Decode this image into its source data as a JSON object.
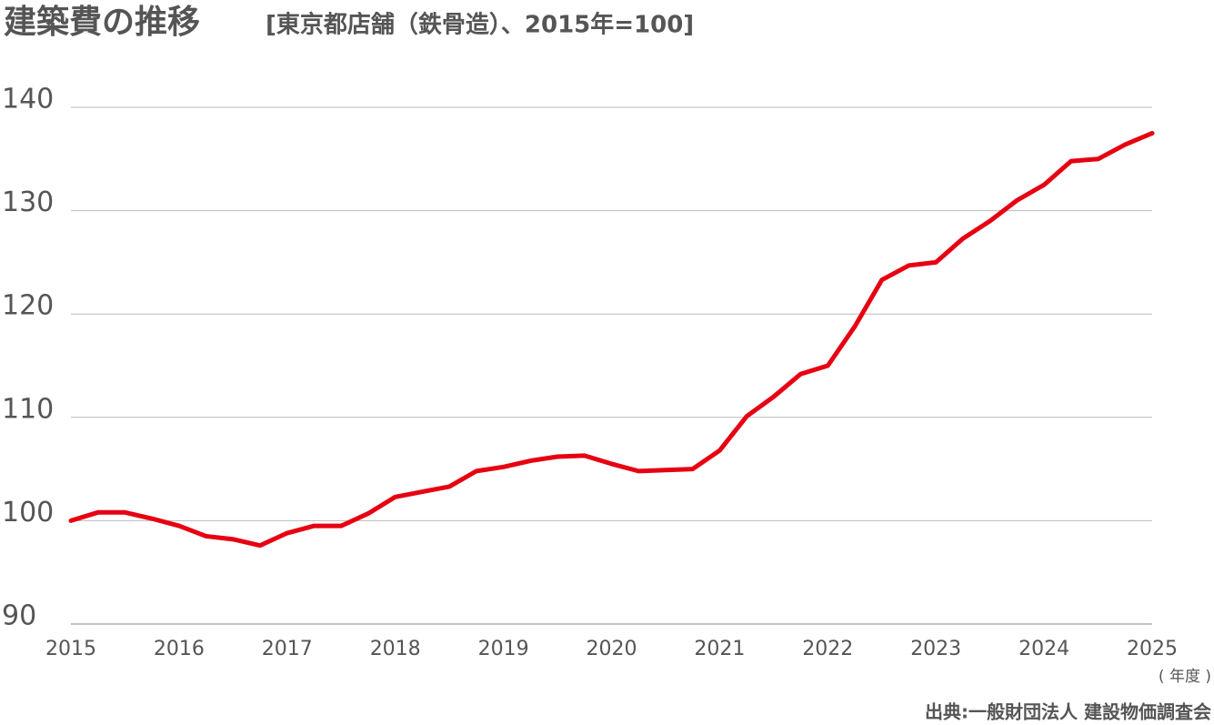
{
  "chart_data": {
    "type": "line",
    "title": "建築費の推移",
    "subtitle": "[東京都店舗（鉄骨造）、2015年=100]",
    "x_unit": "( 年度 )",
    "source": "出典:一般財団法人 建設物価調査会",
    "x": [
      2015,
      2015.25,
      2015.5,
      2015.75,
      2016,
      2016.25,
      2016.5,
      2016.75,
      2017,
      2017.25,
      2017.5,
      2017.75,
      2018,
      2018.25,
      2018.5,
      2018.75,
      2019,
      2019.25,
      2019.5,
      2019.75,
      2020,
      2020.25,
      2020.5,
      2020.75,
      2021,
      2021.25,
      2021.5,
      2021.75,
      2022,
      2022.25,
      2022.5,
      2022.75,
      2023,
      2023.25,
      2023.5,
      2023.75,
      2024,
      2024.25,
      2024.5,
      2024.75,
      2025
    ],
    "series": [
      {
        "color": "#e60012",
        "values": [
          100,
          100.8,
          100.8,
          100.2,
          99.5,
          98.5,
          98.2,
          97.6,
          98.8,
          99.5,
          99.5,
          100.7,
          102.3,
          102.8,
          103.3,
          104.8,
          105.2,
          105.8,
          106.2,
          106.3,
          105.5,
          104.8,
          104.9,
          105.0,
          106.8,
          110.1,
          112.0,
          114.2,
          115.0,
          118.8,
          123.3,
          124.7,
          125.0,
          127.3,
          129.0,
          131.0,
          132.5,
          134.8,
          135.0,
          136.4,
          137.5
        ]
      }
    ],
    "xlim": [
      2015,
      2025
    ],
    "xticks": [
      2015,
      2016,
      2017,
      2018,
      2019,
      2020,
      2021,
      2022,
      2023,
      2024,
      2025
    ],
    "ylim": [
      90,
      140
    ],
    "yticks": [
      90,
      100,
      110,
      120,
      130,
      140
    ],
    "grid": true
  }
}
